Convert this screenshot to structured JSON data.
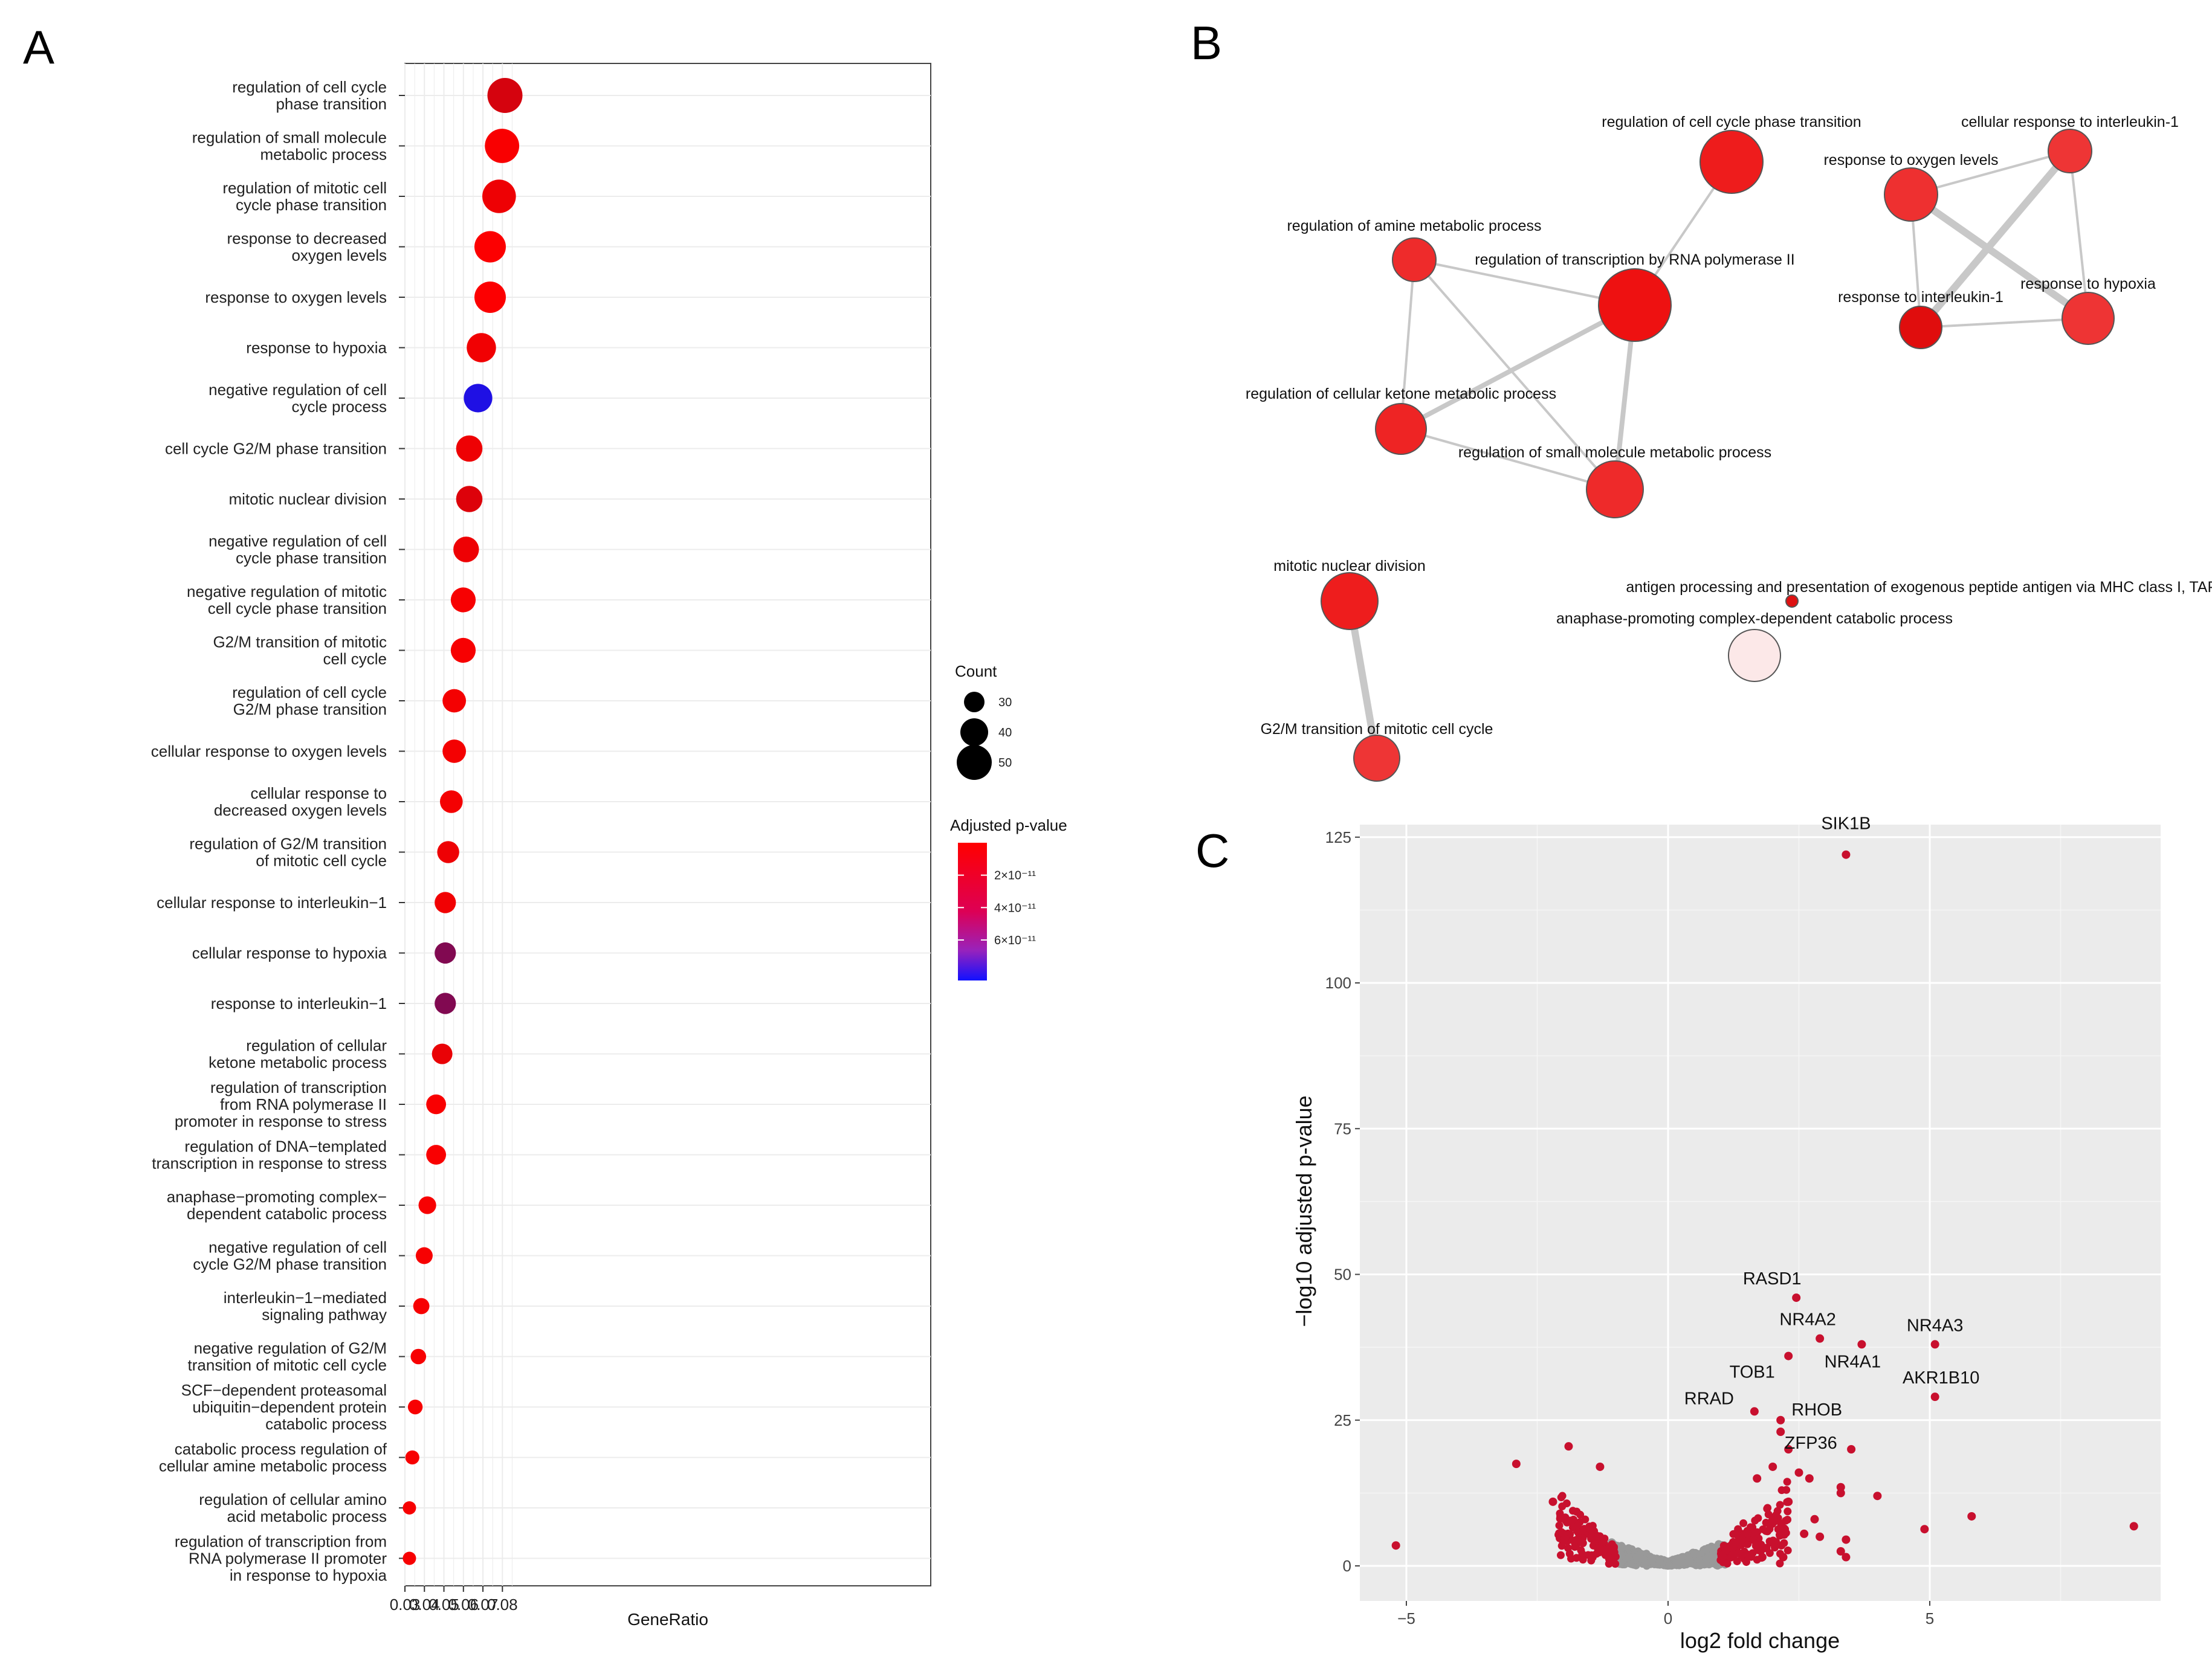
{
  "chart_data": [
    {
      "panel": "A",
      "type": "scatter",
      "title": "",
      "xlabel": "GeneRatio",
      "ylabel": "",
      "xlim": [
        0.03,
        0.083
      ],
      "x_ticks": [
        "0.03",
        "0.04",
        "0.05",
        "0.06",
        "0.07",
        "0.08"
      ],
      "categories": [
        {
          "label": [
            "regulation of cell cycle",
            "phase transition"
          ],
          "x": 0.0813,
          "count": 50,
          "padj": 1.5e-11
        },
        {
          "label": [
            "regulation of small molecule",
            "metabolic process"
          ],
          "x": 0.0798,
          "count": 49,
          "padj": 2e-12
        },
        {
          "label": [
            "regulation of mitotic cell",
            "cycle phase transition"
          ],
          "x": 0.0783,
          "count": 48,
          "padj": 6e-12
        },
        {
          "label": [
            "response to decreased",
            "oxygen levels"
          ],
          "x": 0.0737,
          "count": 45,
          "padj": 1e-12
        },
        {
          "label": [
            "response to oxygen levels"
          ],
          "x": 0.0737,
          "count": 45,
          "padj": 1e-12
        },
        {
          "label": [
            "response to hypoxia"
          ],
          "x": 0.0692,
          "count": 42,
          "padj": 5e-12
        },
        {
          "label": [
            "negative regulation of cell",
            "cycle process"
          ],
          "x": 0.0675,
          "count": 41,
          "padj": 8e-11
        },
        {
          "label": [
            "cell cycle G2/M phase transition"
          ],
          "x": 0.063,
          "count": 38,
          "padj": 6e-12
        },
        {
          "label": [
            "mitotic nuclear division"
          ],
          "x": 0.063,
          "count": 38,
          "padj": 1.2e-11
        },
        {
          "label": [
            "negative regulation of cell",
            "cycle phase transition"
          ],
          "x": 0.0614,
          "count": 37,
          "padj": 6e-12
        },
        {
          "label": [
            "negative regulation of mitotic",
            "cell cycle phase transition"
          ],
          "x": 0.0599,
          "count": 36,
          "padj": 3e-12
        },
        {
          "label": [
            "G2/M transition of mitotic",
            "cell cycle"
          ],
          "x": 0.0599,
          "count": 36,
          "padj": 3e-12
        },
        {
          "label": [
            "regulation of cell cycle",
            "G2/M phase transition"
          ],
          "x": 0.0553,
          "count": 34,
          "padj": 4e-12
        },
        {
          "label": [
            "cellular response to oxygen levels"
          ],
          "x": 0.0553,
          "count": 34,
          "padj": 4e-12
        },
        {
          "label": [
            "cellular response to",
            "decreased oxygen levels"
          ],
          "x": 0.0538,
          "count": 33,
          "padj": 4e-12
        },
        {
          "label": [
            "regulation of G2/M transition",
            "of mitotic cell cycle"
          ],
          "x": 0.0522,
          "count": 32,
          "padj": 6e-12
        },
        {
          "label": [
            "cellular response to interleukin−1"
          ],
          "x": 0.0507,
          "count": 31,
          "padj": 5e-12
        },
        {
          "label": [
            "cellular response to hypoxia"
          ],
          "x": 0.0507,
          "count": 31,
          "padj": 4.5e-11
        },
        {
          "label": [
            "response to interleukin−1"
          ],
          "x": 0.0507,
          "count": 31,
          "padj": 4.5e-11
        },
        {
          "label": [
            "regulation of cellular",
            "ketone metabolic process"
          ],
          "x": 0.0491,
          "count": 30,
          "padj": 8e-12
        },
        {
          "label": [
            "regulation of transcription",
            "from RNA polymerase II",
            "promoter in response to stress"
          ],
          "x": 0.046,
          "count": 29,
          "padj": 2e-12
        },
        {
          "label": [
            "regulation of DNA−templated",
            "transcription in response to stress"
          ],
          "x": 0.046,
          "count": 29,
          "padj": 2e-12
        },
        {
          "label": [
            "anaphase−promoting complex−",
            "dependent catabolic process"
          ],
          "x": 0.0415,
          "count": 26,
          "padj": 3e-12
        },
        {
          "label": [
            "negative regulation of cell",
            "cycle G2/M phase transition"
          ],
          "x": 0.0399,
          "count": 25,
          "padj": 3e-12
        },
        {
          "label": [
            "interleukin−1−mediated",
            "signaling pathway"
          ],
          "x": 0.0384,
          "count": 24,
          "padj": 3e-12
        },
        {
          "label": [
            "negative regulation of G2/M",
            "transition of mitotic cell cycle"
          ],
          "x": 0.0369,
          "count": 23,
          "padj": 3e-12
        },
        {
          "label": [
            "SCF−dependent proteasomal",
            "ubiquitin−dependent protein",
            "catabolic process"
          ],
          "x": 0.0353,
          "count": 22,
          "padj": 3e-12
        },
        {
          "label": [
            "catabolic process regulation of",
            "cellular amine metabolic process"
          ],
          "x": 0.0338,
          "count": 21,
          "padj": 3e-12
        },
        {
          "label": [
            "regulation of cellular amino",
            "acid metabolic process"
          ],
          "x": 0.0323,
          "count": 20,
          "padj": 3e-12
        },
        {
          "label": [
            "regulation of transcription from",
            "RNA polymerase II promoter",
            "in response to hypoxia"
          ],
          "x": 0.0323,
          "count": 20,
          "padj": 3e-12
        }
      ],
      "legend_count": {
        "title": "Count",
        "values": [
          30,
          40,
          50
        ],
        "labels": [
          "30",
          "40",
          "50"
        ]
      },
      "legend_padj": {
        "title": "Adjusted p-value",
        "range": [
          0,
          8.5e-11
        ],
        "ticks": [
          2e-11,
          4e-11,
          6e-11
        ],
        "labels": [
          "2×10⁻¹¹",
          "4×10⁻¹¹",
          "6×10⁻¹¹"
        ],
        "low_color": "#ff0000",
        "high_color": "#0000ff"
      }
    },
    {
      "panel": "B",
      "type": "network",
      "nodes": [
        {
          "id": "cc_phase",
          "label": "regulation of cell cycle phase transition",
          "size": 52,
          "color": "#ee1c1c"
        },
        {
          "id": "amine",
          "label": "regulation of amine metabolic process",
          "size": 36,
          "color": "#ee2b2b"
        },
        {
          "id": "transcr",
          "label": "regulation of transcription by RNA polymerase II",
          "size": 60,
          "color": "#ee1111"
        },
        {
          "id": "ketone",
          "label": "regulation of cellular ketone metabolic process",
          "size": 42,
          "color": "#ee2424"
        },
        {
          "id": "smallmol",
          "label": "regulation of small molecule metabolic process",
          "size": 47,
          "color": "#ee2a2a"
        },
        {
          "id": "o2",
          "label": "response to oxygen levels",
          "size": 44,
          "color": "#ee3030"
        },
        {
          "id": "cil1",
          "label": "cellular response to interleukin-1",
          "size": 36,
          "color": "#ee3535"
        },
        {
          "id": "il1",
          "label": "response to interleukin-1",
          "size": 35,
          "color": "#e00d0d"
        },
        {
          "id": "hypoxia",
          "label": "response to hypoxia",
          "size": 43,
          "color": "#ee3434"
        },
        {
          "id": "mitotic",
          "label": "mitotic nuclear division",
          "size": 47,
          "color": "#ee1d1d"
        },
        {
          "id": "antigen",
          "label": "antigen processing and presentation of exogenous peptide antigen via MHC class I, TAP-dependent",
          "size": 10,
          "color": "#dd1111"
        },
        {
          "id": "apc",
          "label": "anaphase-promoting complex-dependent catabolic process",
          "size": 43,
          "color": "#fce8e8"
        },
        {
          "id": "g2m",
          "label": "G2/M transition of mitotic cell cycle",
          "size": 38,
          "color": "#ee3535"
        }
      ],
      "edges": [
        {
          "from": "amine",
          "to": "transcr",
          "weight": 1
        },
        {
          "from": "amine",
          "to": "ketone",
          "weight": 1
        },
        {
          "from": "amine",
          "to": "smallmol",
          "weight": 1
        },
        {
          "from": "transcr",
          "to": "cc_phase",
          "weight": 1
        },
        {
          "from": "transcr",
          "to": "ketone",
          "weight": 2
        },
        {
          "from": "transcr",
          "to": "smallmol",
          "weight": 2
        },
        {
          "from": "ketone",
          "to": "smallmol",
          "weight": 1
        },
        {
          "from": "o2",
          "to": "cil1",
          "weight": 1
        },
        {
          "from": "o2",
          "to": "il1",
          "weight": 1
        },
        {
          "from": "o2",
          "to": "hypoxia",
          "weight": 3
        },
        {
          "from": "cil1",
          "to": "il1",
          "weight": 3
        },
        {
          "from": "cil1",
          "to": "hypoxia",
          "weight": 1
        },
        {
          "from": "il1",
          "to": "hypoxia",
          "weight": 1
        },
        {
          "from": "mitotic",
          "to": "g2m",
          "weight": 3
        }
      ]
    },
    {
      "panel": "C",
      "type": "scatter",
      "xlabel": "log2 fold change",
      "ylabel": "−log10 adjusted p-value",
      "xlim": [
        -6,
        9.5
      ],
      "ylim": [
        -4,
        128
      ],
      "x_ticks": [
        -5,
        0,
        5
      ],
      "x_tick_labels": [
        "−5",
        "0",
        "5"
      ],
      "y_ticks": [
        0,
        25,
        50,
        75,
        100,
        125
      ],
      "y_tick_labels": [
        "0",
        "25",
        "50",
        "75",
        "100",
        "125"
      ],
      "labeled_genes": [
        {
          "gene": "SIK1B",
          "x": 3.4,
          "y": 122
        },
        {
          "gene": "RASD1",
          "x": 2.45,
          "y": 46
        },
        {
          "gene": "NR4A2",
          "x": 2.9,
          "y": 39
        },
        {
          "gene": "NR4A3",
          "x": 5.1,
          "y": 38
        },
        {
          "gene": "NR4A1",
          "x": 3.7,
          "y": 38
        },
        {
          "gene": "TOB1",
          "x": 2.3,
          "y": 36
        },
        {
          "gene": "AKR1B10",
          "x": 5.1,
          "y": 29
        },
        {
          "gene": "RRAD",
          "x": 1.65,
          "y": 26.5
        },
        {
          "gene": "RHOB",
          "x": 2.15,
          "y": 25
        },
        {
          "gene": "ZFP36",
          "x": 2.15,
          "y": 23
        }
      ],
      "significant_color": "#c8102e",
      "nonsignificant_color": "#999999"
    }
  ],
  "panels": {
    "A": "A",
    "B": "B",
    "C": "C"
  }
}
